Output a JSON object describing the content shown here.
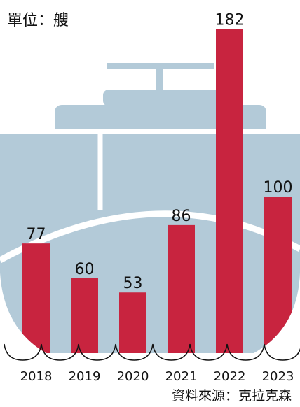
{
  "chart_data": {
    "type": "bar",
    "unit_label": "單位：艘",
    "source": "資料來源：克拉克森",
    "categories": [
      "2018",
      "2019",
      "2020",
      "2021",
      "2022",
      "2023"
    ],
    "values": [
      77,
      60,
      53,
      86,
      182,
      100
    ],
    "color": "#c8243f"
  }
}
